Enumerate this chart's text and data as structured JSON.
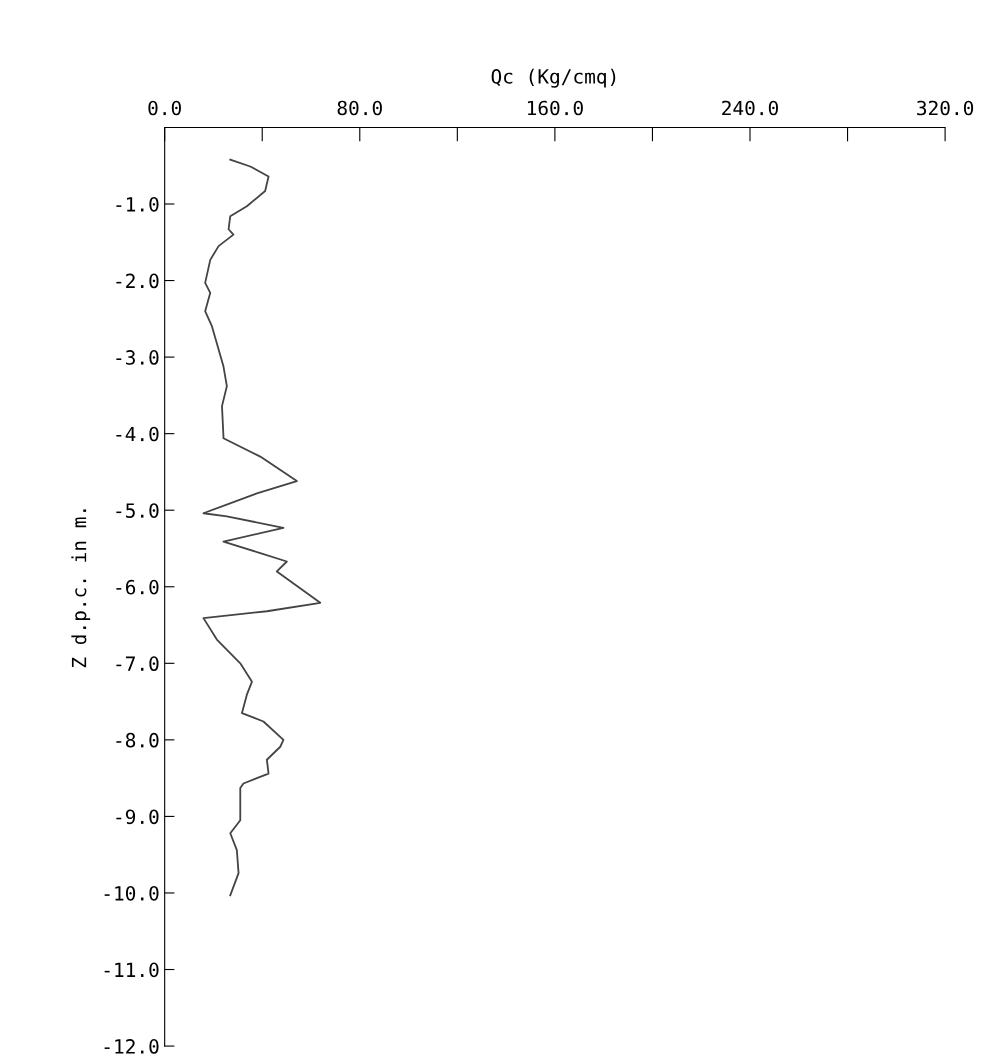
{
  "chart_data": {
    "type": "line",
    "xlabel": "Qc (Kg/cmq)",
    "ylabel": "Z d.p.c. in m.",
    "xlim": [
      0,
      320
    ],
    "xticks": [
      {
        "value": 0,
        "label": "0.0"
      },
      {
        "value": 40,
        "label": null
      },
      {
        "value": 80,
        "label": "80.0"
      },
      {
        "value": 120,
        "label": null
      },
      {
        "value": 160,
        "label": "160.0"
      },
      {
        "value": 200,
        "label": null
      },
      {
        "value": 240,
        "label": "240.0"
      },
      {
        "value": 280,
        "label": null
      },
      {
        "value": 320,
        "label": "320.0"
      }
    ],
    "ylim": [
      -12,
      0
    ],
    "yticks": [
      {
        "value": -1,
        "label": "-1.0"
      },
      {
        "value": -2,
        "label": "-2.0"
      },
      {
        "value": -3,
        "label": "-3.0"
      },
      {
        "value": -4,
        "label": "-4.0"
      },
      {
        "value": -5,
        "label": "-5.0"
      },
      {
        "value": -6,
        "label": "-6.0"
      },
      {
        "value": -7,
        "label": "-7.0"
      },
      {
        "value": -8,
        "label": "-8.0"
      },
      {
        "value": -9,
        "label": "-9.0"
      },
      {
        "value": -10,
        "label": "-10.0"
      },
      {
        "value": -11,
        "label": "-11.0"
      },
      {
        "value": -12,
        "label": "-12.0"
      }
    ],
    "grid": false,
    "marker": "none",
    "line_style": "solid",
    "series": [
      {
        "color": "#444444",
        "x": [
          26.9,
          35.1,
          42.6,
          41.2,
          33.7,
          26.9,
          26.2,
          28.2,
          22.1,
          18.7,
          16.6,
          18.7,
          16.6,
          19.4,
          24.1,
          25.5,
          23.5,
          24.1,
          24.1,
          39.2,
          54.2,
          37.8,
          15.9,
          25.5,
          48.7,
          24.1,
          39.2,
          50.1,
          46.0,
          63.8,
          41.9,
          15.9,
          21.4,
          31.0,
          35.8,
          33.7,
          31.7,
          40.5,
          48.7,
          47.4,
          41.9,
          42.6,
          32.3,
          31.0,
          31.0,
          26.9,
          29.6,
          30.3,
          26.9
        ],
        "values": [
          -0.42,
          -0.51,
          -0.64,
          -0.83,
          -1.03,
          -1.16,
          -1.33,
          -1.4,
          -1.55,
          -1.73,
          -2.03,
          -2.16,
          -2.4,
          -2.6,
          -3.12,
          -3.38,
          -3.64,
          -4.03,
          -4.06,
          -4.3,
          -4.62,
          -4.78,
          -5.04,
          -5.08,
          -5.23,
          -5.41,
          -5.56,
          -5.67,
          -5.8,
          -6.21,
          -6.32,
          -6.41,
          -6.69,
          -7.0,
          -7.24,
          -7.41,
          -7.65,
          -7.76,
          -8.0,
          -8.09,
          -8.26,
          -8.44,
          -8.57,
          -8.63,
          -9.05,
          -9.22,
          -9.44,
          -9.74,
          -10.03
        ]
      }
    ]
  }
}
